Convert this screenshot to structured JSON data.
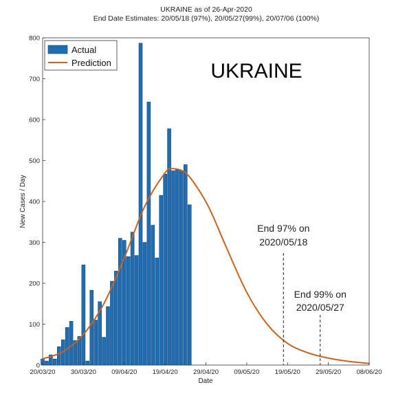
{
  "chart_data": {
    "type": "bar",
    "title": "UKRAINE as of 26-Apr-2020",
    "subtitle": "End Date Estimates: 20/05/18 (97%), 20/05/27(99%), 20/07/06 (100%)",
    "big_label": "UKRAINE",
    "xlabel": "Date",
    "ylabel": "New Cases / Day",
    "ylim": [
      0,
      800
    ],
    "yticks": [
      0,
      100,
      200,
      300,
      400,
      500,
      600,
      700,
      800
    ],
    "x_start": "2020-03-20",
    "x_end": "2020-06-08",
    "xticks": [
      {
        "date": "2020-03-20",
        "label": "20/03/20"
      },
      {
        "date": "2020-03-30",
        "label": "30/03/20"
      },
      {
        "date": "2020-04-09",
        "label": "09/04/20"
      },
      {
        "date": "2020-04-19",
        "label": "19/04/20"
      },
      {
        "date": "2020-04-29",
        "label": "29/04/20"
      },
      {
        "date": "2020-05-09",
        "label": "09/05/20"
      },
      {
        "date": "2020-05-19",
        "label": "19/05/20"
      },
      {
        "date": "2020-05-29",
        "label": "29/05/20"
      },
      {
        "date": "2020-06-08",
        "label": "08/06/20"
      }
    ],
    "grid": false,
    "legend": {
      "placement": "top-left",
      "entries": [
        "Actual",
        "Prediction"
      ]
    },
    "series": [
      {
        "name": "Actual",
        "type": "bar",
        "color": "#1f6db3",
        "dates": [
          "2020-03-20",
          "2020-03-21",
          "2020-03-22",
          "2020-03-23",
          "2020-03-24",
          "2020-03-25",
          "2020-03-26",
          "2020-03-27",
          "2020-03-28",
          "2020-03-29",
          "2020-03-30",
          "2020-03-31",
          "2020-04-01",
          "2020-04-02",
          "2020-04-03",
          "2020-04-04",
          "2020-04-05",
          "2020-04-06",
          "2020-04-07",
          "2020-04-08",
          "2020-04-09",
          "2020-04-10",
          "2020-04-11",
          "2020-04-12",
          "2020-04-13",
          "2020-04-14",
          "2020-04-15",
          "2020-04-16",
          "2020-04-17",
          "2020-04-18",
          "2020-04-19",
          "2020-04-20",
          "2020-04-21",
          "2020-04-22",
          "2020-04-23",
          "2020-04-24",
          "2020-04-25",
          "2020-04-26"
        ],
        "values": [
          15,
          10,
          25,
          15,
          45,
          62,
          92,
          107,
          60,
          70,
          245,
          10,
          183,
          110,
          155,
          68,
          143,
          205,
          230,
          310,
          305,
          265,
          325,
          268,
          787,
          300,
          643,
          342,
          262,
          415,
          467,
          578,
          475,
          478,
          475,
          490,
          392,
          0
        ]
      },
      {
        "name": "Prediction",
        "type": "line",
        "color": "#c8621d",
        "points": [
          [
            "2020-03-20",
            15
          ],
          [
            "2020-03-25",
            33
          ],
          [
            "2020-03-30",
            75
          ],
          [
            "2020-04-04",
            150
          ],
          [
            "2020-04-09",
            262
          ],
          [
            "2020-04-14",
            388
          ],
          [
            "2020-04-19",
            470
          ],
          [
            "2020-04-21",
            480
          ],
          [
            "2020-04-24",
            470
          ],
          [
            "2020-04-27",
            432
          ],
          [
            "2020-04-30",
            380
          ],
          [
            "2020-05-04",
            288
          ],
          [
            "2020-05-09",
            178
          ],
          [
            "2020-05-14",
            100
          ],
          [
            "2020-05-19",
            53
          ],
          [
            "2020-05-24",
            30
          ],
          [
            "2020-05-29",
            17
          ],
          [
            "2020-06-03",
            9
          ],
          [
            "2020-06-08",
            4
          ]
        ]
      }
    ],
    "annotations": [
      {
        "date": "2020-05-18",
        "line1": "End 97% on",
        "line2": "2020/05/18"
      },
      {
        "date": "2020-05-27",
        "line1": "End 99% on",
        "line2": "2020/05/27"
      }
    ]
  }
}
